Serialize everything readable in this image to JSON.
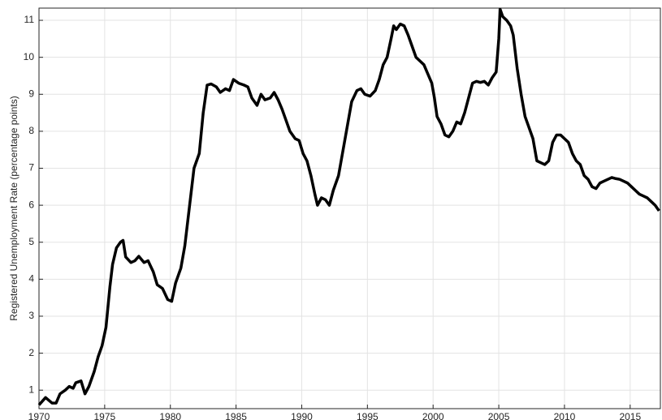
{
  "chart_data": {
    "type": "line",
    "y_label": "Registered Unemployment Rate (percentage points)",
    "x": [
      1970.0,
      1970.5,
      1971.0,
      1971.3,
      1971.6,
      1972.0,
      1972.3,
      1972.6,
      1972.8,
      1973.2,
      1973.5,
      1973.8,
      1974.2,
      1974.5,
      1974.8,
      1975.1,
      1975.4,
      1975.6,
      1975.9,
      1976.2,
      1976.4,
      1976.6,
      1977.0,
      1977.3,
      1977.6,
      1978.0,
      1978.3,
      1978.7,
      1979.0,
      1979.4,
      1979.8,
      1980.1,
      1980.4,
      1980.8,
      1981.1,
      1981.4,
      1981.8,
      1982.2,
      1982.5,
      1982.8,
      1983.1,
      1983.5,
      1983.8,
      1984.2,
      1984.5,
      1984.8,
      1985.2,
      1985.6,
      1985.9,
      1986.2,
      1986.6,
      1986.9,
      1987.2,
      1987.6,
      1987.9,
      1988.2,
      1988.5,
      1988.8,
      1989.1,
      1989.5,
      1989.8,
      1990.1,
      1990.4,
      1990.7,
      1991.0,
      1991.2,
      1991.5,
      1991.8,
      1992.1,
      1992.4,
      1992.8,
      1993.2,
      1993.5,
      1993.8,
      1994.2,
      1994.5,
      1994.8,
      1995.2,
      1995.6,
      1995.9,
      1996.2,
      1996.5,
      1996.8,
      1997.0,
      1997.2,
      1997.5,
      1997.8,
      1998.1,
      1998.4,
      1998.7,
      1999.0,
      1999.3,
      1999.6,
      1999.9,
      2000.1,
      2000.3,
      2000.6,
      2000.9,
      2001.2,
      2001.5,
      2001.8,
      2002.1,
      2002.4,
      2002.7,
      2003.0,
      2003.3,
      2003.6,
      2003.9,
      2004.2,
      2004.5,
      2004.8,
      2005.0,
      2005.1,
      2005.3,
      2005.6,
      2005.9,
      2006.1,
      2006.4,
      2006.7,
      2007.0,
      2007.3,
      2007.6,
      2007.9,
      2008.2,
      2008.5,
      2008.8,
      2009.1,
      2009.4,
      2009.7,
      2010.0,
      2010.3,
      2010.6,
      2010.9,
      2011.2,
      2011.5,
      2011.8,
      2012.1,
      2012.4,
      2012.7,
      2013.0,
      2013.3,
      2013.6,
      2013.9,
      2014.2,
      2014.5,
      2014.8,
      2015.1,
      2015.4,
      2015.7,
      2016.0,
      2016.3,
      2016.6,
      2016.9,
      2017.2
    ],
    "series": [
      {
        "color": "#000000",
        "values": [
          0.6,
          0.8,
          0.65,
          0.65,
          0.9,
          1.0,
          1.1,
          1.05,
          1.2,
          1.25,
          0.9,
          1.1,
          1.5,
          1.9,
          2.2,
          2.7,
          3.8,
          4.4,
          4.85,
          5.0,
          5.05,
          4.6,
          4.45,
          4.5,
          4.62,
          4.45,
          4.5,
          4.2,
          3.85,
          3.75,
          3.45,
          3.4,
          3.9,
          4.3,
          4.9,
          5.8,
          7.0,
          7.4,
          8.5,
          9.25,
          9.28,
          9.2,
          9.05,
          9.15,
          9.1,
          9.4,
          9.3,
          9.25,
          9.2,
          8.9,
          8.7,
          9.0,
          8.85,
          8.9,
          9.05,
          8.85,
          8.6,
          8.3,
          8.0,
          7.8,
          7.75,
          7.4,
          7.2,
          6.8,
          6.3,
          6.0,
          6.2,
          6.15,
          6.0,
          6.4,
          6.8,
          7.6,
          8.2,
          8.8,
          9.1,
          9.15,
          9.0,
          8.95,
          9.1,
          9.4,
          9.8,
          10.0,
          10.5,
          10.85,
          10.75,
          10.9,
          10.85,
          10.6,
          10.3,
          10.0,
          9.9,
          9.8,
          9.55,
          9.3,
          8.9,
          8.4,
          8.2,
          7.9,
          7.85,
          8.0,
          8.25,
          8.2,
          8.5,
          8.9,
          9.3,
          9.35,
          9.32,
          9.35,
          9.25,
          9.45,
          9.6,
          10.5,
          11.3,
          11.1,
          11.0,
          10.85,
          10.6,
          9.7,
          9.0,
          8.4,
          8.1,
          7.8,
          7.2,
          7.15,
          7.1,
          7.2,
          7.7,
          7.9,
          7.9,
          7.8,
          7.7,
          7.4,
          7.2,
          7.1,
          6.8,
          6.7,
          6.5,
          6.45,
          6.6,
          6.65,
          6.7,
          6.75,
          6.72,
          6.7,
          6.65,
          6.6,
          6.5,
          6.4,
          6.3,
          6.25,
          6.2,
          6.1,
          6.0,
          5.85
        ]
      }
    ],
    "xlim": [
      1970,
      2017.3
    ],
    "xticks": [
      1970,
      1975,
      1980,
      1985,
      1990,
      1995,
      2000,
      2005,
      2010,
      2015
    ],
    "ylim": [
      0.5,
      11.33
    ],
    "yticks": [
      1,
      2,
      3,
      4,
      5,
      6,
      7,
      8,
      9,
      10,
      11
    ],
    "grid": true
  }
}
